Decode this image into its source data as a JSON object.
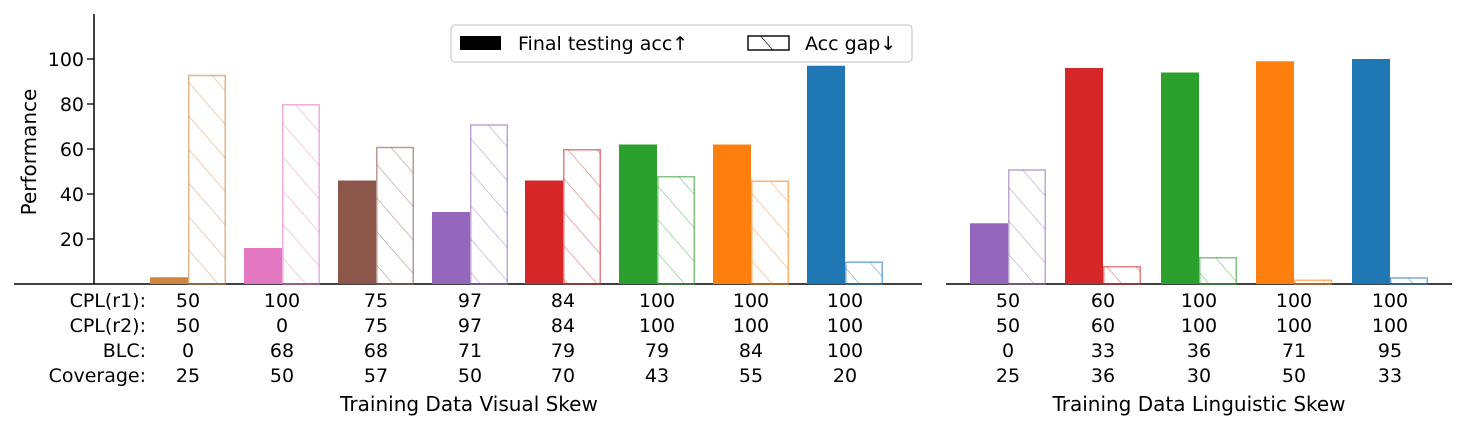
{
  "chart_data": [
    {
      "type": "bar",
      "ylabel": "Performance",
      "xlabel": "Training Data Visual Skew",
      "ylim": [
        0,
        120
      ],
      "yticks": [
        20,
        40,
        60,
        80,
        100
      ],
      "colors": [
        "#cd853f",
        "#e377c2",
        "#8c564b",
        "#9467bd",
        "#d62728",
        "#2ca02c",
        "#ff7f0e",
        "#1f77b4"
      ],
      "legend": {
        "placement": "top-center",
        "entries": [
          "Final testing acc↑",
          "Acc gap↓"
        ]
      },
      "series": [
        {
          "name": "Final testing acc↑",
          "values": [
            3,
            16,
            46,
            32,
            46,
            62,
            62,
            97
          ]
        },
        {
          "name": "Acc gap↓",
          "values": [
            93,
            80,
            61,
            71,
            60,
            48,
            46,
            10
          ]
        }
      ],
      "table_rows": [
        {
          "label": "CPL(r1):",
          "values": [
            "50",
            "100",
            "75",
            "97",
            "84",
            "100",
            "100",
            "100"
          ]
        },
        {
          "label": "CPL(r2):",
          "values": [
            "50",
            "0",
            "75",
            "97",
            "84",
            "100",
            "100",
            "100"
          ]
        },
        {
          "label": "BLC:",
          "values": [
            "0",
            "68",
            "68",
            "71",
            "79",
            "79",
            "84",
            "100"
          ]
        },
        {
          "label": "Coverage:",
          "values": [
            "25",
            "50",
            "57",
            "50",
            "70",
            "43",
            "55",
            "20"
          ]
        }
      ]
    },
    {
      "type": "bar",
      "xlabel": "Training Data Linguistic Skew",
      "ylim": [
        0,
        120
      ],
      "colors": [
        "#9467bd",
        "#d62728",
        "#2ca02c",
        "#ff7f0e",
        "#1f77b4"
      ],
      "series": [
        {
          "name": "Final testing acc↑",
          "values": [
            27,
            96,
            94,
            99,
            100
          ]
        },
        {
          "name": "Acc gap↓",
          "values": [
            51,
            8,
            12,
            2,
            3
          ]
        }
      ],
      "table_rows": [
        {
          "values": [
            "50",
            "60",
            "100",
            "100",
            "100"
          ]
        },
        {
          "values": [
            "50",
            "60",
            "100",
            "100",
            "100"
          ]
        },
        {
          "values": [
            "0",
            "33",
            "36",
            "71",
            "95"
          ]
        },
        {
          "values": [
            "25",
            "36",
            "30",
            "50",
            "33"
          ]
        }
      ]
    }
  ]
}
